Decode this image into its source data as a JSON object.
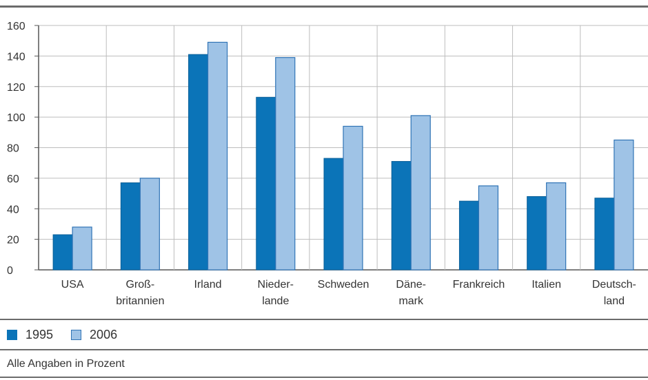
{
  "chart_data": {
    "type": "bar",
    "categories": [
      [
        "USA"
      ],
      [
        "Groß-",
        "britannien"
      ],
      [
        "Irland"
      ],
      [
        "Nieder-",
        "lande"
      ],
      [
        "Schweden"
      ],
      [
        "Däne-",
        "mark"
      ],
      [
        "Frankreich"
      ],
      [
        "Italien"
      ],
      [
        "Deutsch-",
        "land"
      ]
    ],
    "series": [
      {
        "name": "1995",
        "values": [
          23,
          57,
          141,
          113,
          73,
          71,
          45,
          48,
          47
        ],
        "color": "#0b74b8"
      },
      {
        "name": "2006",
        "values": [
          28,
          60,
          149,
          139,
          94,
          101,
          55,
          57,
          85
        ],
        "color": "#9fc3e6"
      }
    ],
    "ylim": [
      0,
      160
    ],
    "yticks": [
      0,
      20,
      40,
      60,
      80,
      100,
      120,
      140,
      160
    ],
    "grid": true,
    "legend_position": "bottom-left"
  },
  "legend": {
    "label_1995": "1995",
    "label_2006": "2006"
  },
  "note": "Alle Angaben in Prozent"
}
